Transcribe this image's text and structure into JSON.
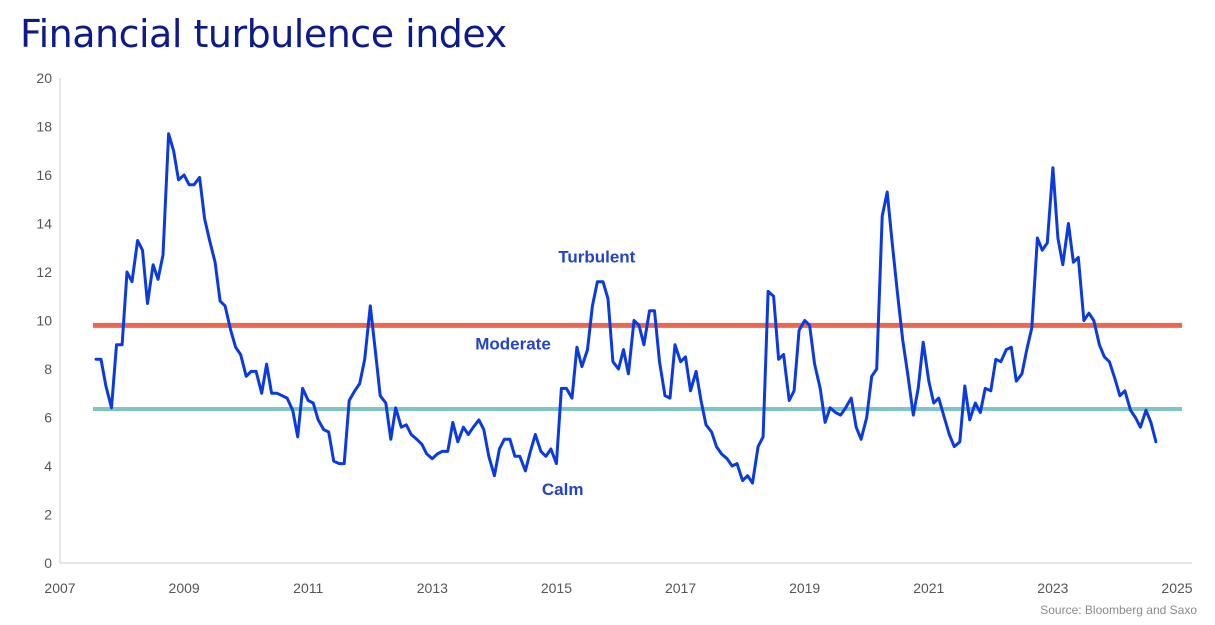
{
  "title": "Financial turbulence index",
  "source": "Source: Bloomberg and Saxo",
  "colors": {
    "line": "#0b3be0",
    "moderate_line": "#ec6650",
    "calm_line": "#7fc4c8",
    "title": "#0d1a8c",
    "zone_label": "#2444c8",
    "axis": "#cccccc"
  },
  "chart_data": {
    "type": "line",
    "title": "Financial turbulence index",
    "xlabel": "",
    "ylabel": "",
    "xlim": [
      2007,
      2025
    ],
    "ylim": [
      0,
      20
    ],
    "x_ticks": [
      2007,
      2009,
      2011,
      2013,
      2015,
      2017,
      2019,
      2021,
      2023,
      2025
    ],
    "y_ticks": [
      0,
      2,
      4,
      6,
      8,
      10,
      12,
      14,
      16,
      18,
      20
    ],
    "grid": false,
    "thresholds": [
      {
        "label": "Moderate",
        "value": 9.8
      },
      {
        "label": "Calm",
        "value": 6.35
      }
    ],
    "annotations": [
      {
        "text": "Turbulent",
        "x": 2015.65,
        "y": 12.4
      },
      {
        "text": "Moderate",
        "x": 2014.3,
        "y": 8.8
      },
      {
        "text": "Calm",
        "x": 2015.1,
        "y": 2.8
      }
    ],
    "series": [
      {
        "values": [
          [
            2007.58,
            8.4
          ],
          [
            2007.66,
            8.4
          ],
          [
            2007.74,
            7.3
          ],
          [
            2007.83,
            6.4
          ],
          [
            2007.91,
            9.0
          ],
          [
            2008.0,
            9.0
          ],
          [
            2008.08,
            12.0
          ],
          [
            2008.16,
            11.6
          ],
          [
            2008.25,
            13.3
          ],
          [
            2008.33,
            12.9
          ],
          [
            2008.41,
            10.7
          ],
          [
            2008.5,
            12.3
          ],
          [
            2008.58,
            11.7
          ],
          [
            2008.66,
            12.7
          ],
          [
            2008.75,
            17.7
          ],
          [
            2008.83,
            17.0
          ],
          [
            2008.91,
            15.8
          ],
          [
            2009.0,
            16.0
          ],
          [
            2009.08,
            15.6
          ],
          [
            2009.16,
            15.6
          ],
          [
            2009.25,
            15.9
          ],
          [
            2009.33,
            14.2
          ],
          [
            2009.41,
            13.3
          ],
          [
            2009.5,
            12.4
          ],
          [
            2009.58,
            10.8
          ],
          [
            2009.66,
            10.6
          ],
          [
            2009.75,
            9.6
          ],
          [
            2009.83,
            8.9
          ],
          [
            2009.91,
            8.6
          ],
          [
            2010.0,
            7.7
          ],
          [
            2010.08,
            7.9
          ],
          [
            2010.16,
            7.9
          ],
          [
            2010.25,
            7.0
          ],
          [
            2010.33,
            8.2
          ],
          [
            2010.41,
            7.0
          ],
          [
            2010.5,
            7.0
          ],
          [
            2010.58,
            6.9
          ],
          [
            2010.66,
            6.8
          ],
          [
            2010.75,
            6.3
          ],
          [
            2010.83,
            5.2
          ],
          [
            2010.91,
            7.2
          ],
          [
            2011.0,
            6.7
          ],
          [
            2011.08,
            6.6
          ],
          [
            2011.16,
            5.9
          ],
          [
            2011.25,
            5.5
          ],
          [
            2011.33,
            5.4
          ],
          [
            2011.41,
            4.2
          ],
          [
            2011.5,
            4.1
          ],
          [
            2011.58,
            4.1
          ],
          [
            2011.66,
            6.7
          ],
          [
            2011.75,
            7.1
          ],
          [
            2011.83,
            7.4
          ],
          [
            2011.91,
            8.4
          ],
          [
            2012.0,
            10.6
          ],
          [
            2012.08,
            8.8
          ],
          [
            2012.16,
            6.9
          ],
          [
            2012.25,
            6.6
          ],
          [
            2012.33,
            5.1
          ],
          [
            2012.41,
            6.4
          ],
          [
            2012.5,
            5.6
          ],
          [
            2012.58,
            5.7
          ],
          [
            2012.66,
            5.3
          ],
          [
            2012.75,
            5.1
          ],
          [
            2012.83,
            4.9
          ],
          [
            2012.91,
            4.5
          ],
          [
            2013.0,
            4.3
          ],
          [
            2013.08,
            4.5
          ],
          [
            2013.16,
            4.6
          ],
          [
            2013.25,
            4.6
          ],
          [
            2013.33,
            5.8
          ],
          [
            2013.41,
            5.0
          ],
          [
            2013.5,
            5.6
          ],
          [
            2013.58,
            5.3
          ],
          [
            2013.66,
            5.6
          ],
          [
            2013.75,
            5.9
          ],
          [
            2013.83,
            5.5
          ],
          [
            2013.91,
            4.4
          ],
          [
            2014.0,
            3.6
          ],
          [
            2014.08,
            4.7
          ],
          [
            2014.16,
            5.1
          ],
          [
            2014.25,
            5.1
          ],
          [
            2014.33,
            4.4
          ],
          [
            2014.41,
            4.4
          ],
          [
            2014.5,
            3.8
          ],
          [
            2014.58,
            4.6
          ],
          [
            2014.66,
            5.3
          ],
          [
            2014.75,
            4.6
          ],
          [
            2014.83,
            4.4
          ],
          [
            2014.91,
            4.7
          ],
          [
            2015.0,
            4.1
          ],
          [
            2015.08,
            7.2
          ],
          [
            2015.16,
            7.2
          ],
          [
            2015.25,
            6.8
          ],
          [
            2015.33,
            8.9
          ],
          [
            2015.41,
            8.1
          ],
          [
            2015.5,
            8.8
          ],
          [
            2015.58,
            10.6
          ],
          [
            2015.66,
            11.6
          ],
          [
            2015.75,
            11.6
          ],
          [
            2015.83,
            10.9
          ],
          [
            2015.91,
            8.3
          ],
          [
            2016.0,
            8.0
          ],
          [
            2016.08,
            8.8
          ],
          [
            2016.16,
            7.8
          ],
          [
            2016.25,
            10.0
          ],
          [
            2016.33,
            9.8
          ],
          [
            2016.41,
            9.0
          ],
          [
            2016.5,
            10.4
          ],
          [
            2016.58,
            10.4
          ],
          [
            2016.66,
            8.3
          ],
          [
            2016.75,
            6.9
          ],
          [
            2016.83,
            6.8
          ],
          [
            2016.91,
            9.0
          ],
          [
            2017.0,
            8.3
          ],
          [
            2017.08,
            8.5
          ],
          [
            2017.16,
            7.1
          ],
          [
            2017.25,
            7.9
          ],
          [
            2017.33,
            6.7
          ],
          [
            2017.41,
            5.7
          ],
          [
            2017.5,
            5.4
          ],
          [
            2017.58,
            4.8
          ],
          [
            2017.66,
            4.5
          ],
          [
            2017.75,
            4.3
          ],
          [
            2017.83,
            4.0
          ],
          [
            2017.91,
            4.1
          ],
          [
            2018.0,
            3.4
          ],
          [
            2018.08,
            3.6
          ],
          [
            2018.16,
            3.3
          ],
          [
            2018.25,
            4.8
          ],
          [
            2018.33,
            5.2
          ],
          [
            2018.41,
            11.2
          ],
          [
            2018.5,
            11.0
          ],
          [
            2018.58,
            8.4
          ],
          [
            2018.66,
            8.6
          ],
          [
            2018.75,
            6.7
          ],
          [
            2018.83,
            7.1
          ],
          [
            2018.91,
            9.6
          ],
          [
            2019.0,
            10.0
          ],
          [
            2019.08,
            9.8
          ],
          [
            2019.16,
            8.2
          ],
          [
            2019.25,
            7.2
          ],
          [
            2019.33,
            5.8
          ],
          [
            2019.41,
            6.4
          ],
          [
            2019.5,
            6.2
          ],
          [
            2019.58,
            6.1
          ],
          [
            2019.66,
            6.4
          ],
          [
            2019.75,
            6.8
          ],
          [
            2019.83,
            5.6
          ],
          [
            2019.91,
            5.1
          ],
          [
            2020.0,
            6.0
          ],
          [
            2020.08,
            7.7
          ],
          [
            2020.16,
            8.0
          ],
          [
            2020.25,
            14.3
          ],
          [
            2020.33,
            15.3
          ],
          [
            2020.41,
            13.2
          ],
          [
            2020.5,
            11.0
          ],
          [
            2020.58,
            9.2
          ],
          [
            2020.66,
            7.8
          ],
          [
            2020.75,
            6.1
          ],
          [
            2020.83,
            7.2
          ],
          [
            2020.91,
            9.1
          ],
          [
            2021.0,
            7.5
          ],
          [
            2021.08,
            6.6
          ],
          [
            2021.16,
            6.8
          ],
          [
            2021.25,
            6.0
          ],
          [
            2021.33,
            5.3
          ],
          [
            2021.41,
            4.8
          ],
          [
            2021.5,
            5.0
          ],
          [
            2021.58,
            7.3
          ],
          [
            2021.66,
            5.9
          ],
          [
            2021.75,
            6.6
          ],
          [
            2021.83,
            6.2
          ],
          [
            2021.91,
            7.2
          ],
          [
            2022.0,
            7.1
          ],
          [
            2022.08,
            8.4
          ],
          [
            2022.16,
            8.3
          ],
          [
            2022.25,
            8.8
          ],
          [
            2022.33,
            8.9
          ],
          [
            2022.41,
            7.5
          ],
          [
            2022.5,
            7.8
          ],
          [
            2022.58,
            8.8
          ],
          [
            2022.66,
            9.7
          ],
          [
            2022.75,
            13.4
          ],
          [
            2022.83,
            12.9
          ],
          [
            2022.91,
            13.2
          ],
          [
            2023.0,
            16.3
          ],
          [
            2023.08,
            13.4
          ],
          [
            2023.16,
            12.3
          ],
          [
            2023.25,
            14.0
          ],
          [
            2023.33,
            12.4
          ],
          [
            2023.41,
            12.6
          ],
          [
            2023.5,
            10.0
          ],
          [
            2023.58,
            10.3
          ],
          [
            2023.66,
            10.0
          ],
          [
            2023.75,
            9.0
          ],
          [
            2023.83,
            8.5
          ],
          [
            2023.91,
            8.3
          ],
          [
            2024.0,
            7.6
          ],
          [
            2024.08,
            6.9
          ],
          [
            2024.16,
            7.1
          ],
          [
            2024.25,
            6.3
          ],
          [
            2024.33,
            6.0
          ],
          [
            2024.41,
            5.6
          ],
          [
            2024.5,
            6.3
          ],
          [
            2024.58,
            5.8
          ],
          [
            2024.66,
            5.0
          ]
        ]
      }
    ]
  }
}
